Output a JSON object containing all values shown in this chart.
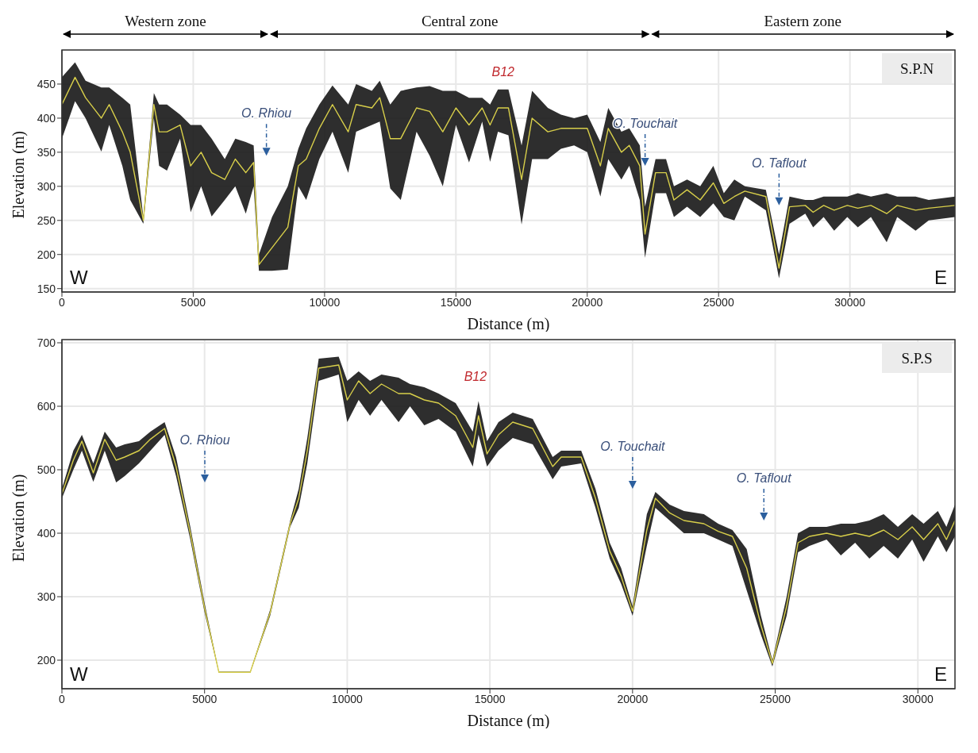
{
  "chart_data": [
    {
      "type": "line",
      "title": "S.P.N",
      "xlabel": "Distance (m)",
      "ylabel": "Elevation (m)",
      "xlim": [
        0,
        34000
      ],
      "xticks": [
        0,
        5000,
        10000,
        15000,
        20000,
        25000,
        30000
      ],
      "ylim": [
        145,
        500
      ],
      "yticks": [
        150,
        200,
        250,
        300,
        350,
        400,
        450
      ],
      "grid": true,
      "x": [
        0,
        500,
        900,
        1500,
        1800,
        2300,
        2600,
        3100,
        3500,
        3700,
        4000,
        4500,
        4900,
        5300,
        5700,
        6200,
        6600,
        7000,
        7300,
        7500,
        8000,
        8600,
        9000,
        9300,
        9800,
        10300,
        10900,
        11200,
        11800,
        12100,
        12500,
        12900,
        13500,
        14000,
        14500,
        15000,
        15500,
        16000,
        16300,
        16600,
        17000,
        17500,
        17900,
        18500,
        19000,
        19500,
        20000,
        20500,
        20800,
        21300,
        21600,
        22000,
        22200,
        22600,
        23000,
        23300,
        23800,
        24300,
        24800,
        25200,
        25600,
        26000,
        26800,
        27300,
        27700,
        28300,
        28600,
        29000,
        29400,
        29900,
        30300,
        30800,
        31400,
        31800,
        32500,
        33000,
        34000
      ],
      "series": [
        {
          "color": "#d8cf4a",
          "values": [
            420,
            460,
            430,
            400,
            420,
            380,
            350,
            250,
            420,
            380,
            380,
            390,
            330,
            350,
            320,
            310,
            340,
            320,
            335,
            185,
            210,
            240,
            330,
            340,
            385,
            420,
            380,
            420,
            415,
            430,
            370,
            370,
            415,
            410,
            380,
            415,
            390,
            415,
            390,
            415,
            415,
            310,
            400,
            380,
            385,
            385,
            385,
            330,
            385,
            350,
            360,
            330,
            230,
            320,
            320,
            280,
            295,
            280,
            305,
            275,
            285,
            293,
            285,
            180,
            270,
            272,
            262,
            272,
            265,
            272,
            268,
            272,
            260,
            272,
            265,
            268,
            272
          ],
          "lower": [
            370,
            425,
            400,
            351,
            390,
            330,
            280,
            245,
            400,
            330,
            323,
            370,
            262,
            300,
            256,
            280,
            300,
            260,
            300,
            176,
            176,
            178,
            300,
            280,
            340,
            380,
            320,
            380,
            390,
            395,
            297,
            280,
            380,
            345,
            300,
            390,
            335,
            395,
            336,
            380,
            375,
            244,
            340,
            340,
            355,
            360,
            350,
            285,
            340,
            310,
            330,
            280,
            195,
            290,
            290,
            255,
            270,
            255,
            275,
            255,
            250,
            285,
            265,
            165,
            245,
            260,
            240,
            255,
            235,
            255,
            240,
            255,
            218,
            255,
            235,
            250,
            255
          ],
          "upper": [
            460,
            482,
            455,
            445,
            445,
            430,
            420,
            255,
            437,
            420,
            420,
            405,
            390,
            390,
            370,
            340,
            370,
            365,
            360,
            200,
            255,
            300,
            355,
            385,
            420,
            448,
            420,
            450,
            440,
            455,
            420,
            440,
            445,
            447,
            440,
            440,
            430,
            430,
            420,
            442,
            442,
            360,
            440,
            415,
            405,
            400,
            405,
            365,
            415,
            380,
            385,
            360,
            270,
            340,
            340,
            300,
            310,
            300,
            330,
            290,
            310,
            300,
            295,
            200,
            285,
            280,
            280,
            285,
            285,
            285,
            290,
            285,
            290,
            285,
            285,
            280,
            285
          ]
        }
      ],
      "annotations": [
        "Western zone",
        "Central zone",
        "Eastern zone",
        "W",
        "E",
        "B12",
        "O. Rhiou",
        "O. Touchait",
        "O. Taflout"
      ]
    },
    {
      "type": "line",
      "title": "S.P.S",
      "xlabel": "Distance (m)",
      "ylabel": "Elevation (m)",
      "xlim": [
        0,
        31300
      ],
      "xticks": [
        0,
        5000,
        10000,
        15000,
        20000,
        25000,
        30000
      ],
      "ylim": [
        155,
        705
      ],
      "yticks": [
        200,
        300,
        400,
        500,
        600,
        700
      ],
      "grid": true,
      "x": [
        0,
        400,
        700,
        1100,
        1500,
        1900,
        2200,
        2700,
        3100,
        3600,
        4000,
        4500,
        5000,
        5500,
        6600,
        7300,
        8000,
        8300,
        8600,
        9000,
        9700,
        10000,
        10400,
        10800,
        11200,
        11800,
        12200,
        12700,
        13200,
        13800,
        14400,
        14600,
        14900,
        15300,
        15800,
        16500,
        17200,
        17500,
        18200,
        18700,
        19200,
        19600,
        20000,
        20500,
        20800,
        21300,
        21800,
        22500,
        23000,
        23500,
        24000,
        24500,
        24900,
        25400,
        25800,
        26200,
        26800,
        27300,
        27800,
        28300,
        28800,
        29300,
        29800,
        30200,
        30700,
        31000,
        31300
      ],
      "series": [
        {
          "color": "#d8cf4a",
          "values": [
            462,
            515,
            545,
            495,
            548,
            515,
            520,
            530,
            548,
            565,
            505,
            400,
            282,
            181,
            181,
            275,
            415,
            455,
            530,
            660,
            665,
            610,
            640,
            620,
            635,
            620,
            620,
            610,
            605,
            585,
            535,
            585,
            525,
            555,
            575,
            565,
            505,
            520,
            520,
            455,
            372,
            332,
            277,
            405,
            455,
            432,
            420,
            415,
            403,
            395,
            345,
            255,
            195,
            285,
            385,
            395,
            400,
            395,
            400,
            395,
            405,
            390,
            410,
            390,
            415,
            390,
            420
          ],
          "lower": [
            455,
            500,
            530,
            481,
            530,
            480,
            490,
            510,
            530,
            555,
            490,
            390,
            275,
            180,
            180,
            270,
            410,
            440,
            510,
            640,
            650,
            575,
            610,
            585,
            610,
            575,
            600,
            570,
            580,
            560,
            505,
            555,
            505,
            530,
            550,
            540,
            485,
            505,
            510,
            440,
            360,
            320,
            270,
            380,
            440,
            420,
            400,
            400,
            390,
            380,
            310,
            240,
            190,
            270,
            370,
            380,
            390,
            365,
            385,
            360,
            380,
            360,
            390,
            355,
            395,
            370,
            395
          ],
          "upper": [
            470,
            530,
            555,
            510,
            560,
            535,
            540,
            545,
            560,
            575,
            520,
            410,
            290,
            182,
            182,
            280,
            420,
            470,
            550,
            675,
            678,
            640,
            655,
            640,
            650,
            645,
            635,
            630,
            620,
            605,
            560,
            608,
            545,
            575,
            590,
            580,
            520,
            530,
            530,
            470,
            385,
            345,
            285,
            430,
            465,
            445,
            435,
            430,
            415,
            405,
            375,
            270,
            200,
            300,
            400,
            410,
            410,
            415,
            415,
            420,
            430,
            410,
            430,
            415,
            435,
            410,
            445
          ]
        }
      ],
      "annotations": [
        "W",
        "E",
        "B12",
        "O. Rhiou",
        "O. Touchait",
        "O. Taflout"
      ]
    }
  ]
}
